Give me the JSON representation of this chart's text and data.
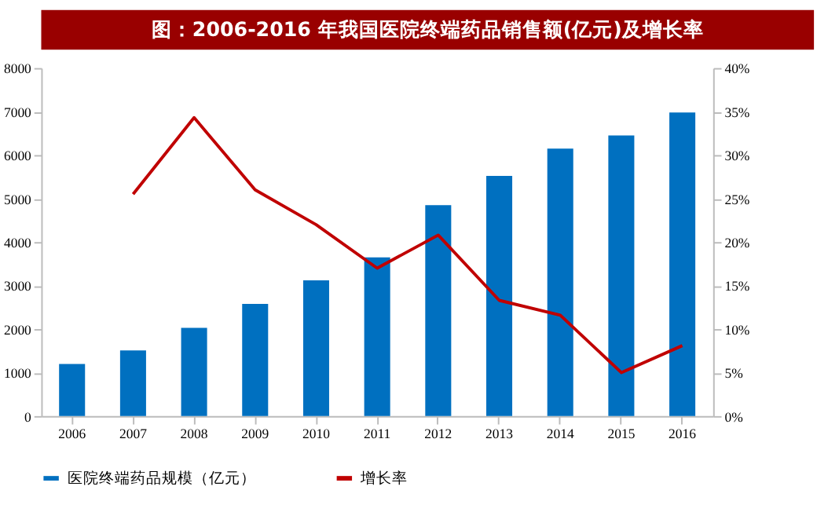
{
  "chart_data": {
    "type": "bar",
    "title": "图：2006-2016 年我国医院终端药品销售额(亿元)及增长率",
    "categories": [
      "2006",
      "2007",
      "2008",
      "2009",
      "2010",
      "2011",
      "2012",
      "2013",
      "2014",
      "2015",
      "2016"
    ],
    "series": [
      {
        "name": "医院终端药品规模（亿元）",
        "color": "#0070c0",
        "values": [
          1200,
          1510,
          2030,
          2580,
          3120,
          3650,
          4850,
          5520,
          6150,
          6450,
          6980
        ]
      },
      {
        "name": "增长率",
        "type": "line",
        "axis": "y2",
        "color": "#c00000",
        "values": [
          null,
          25.5,
          34.3,
          26.0,
          22.0,
          17.0,
          20.8,
          13.3,
          11.6,
          5.0,
          8.1
        ]
      }
    ],
    "ylim": [
      0,
      8000
    ],
    "yticks": [
      0,
      1000,
      2000,
      3000,
      4000,
      5000,
      6000,
      7000,
      8000
    ],
    "y2lim": [
      0,
      40
    ],
    "y2ticks": [
      {
        "value": 0,
        "label": "0%"
      },
      {
        "value": 5,
        "label": "5%"
      },
      {
        "value": 10,
        "label": "10%"
      },
      {
        "value": 15,
        "label": "15%"
      },
      {
        "value": 20,
        "label": "20%"
      },
      {
        "value": 25,
        "label": "25%"
      },
      {
        "value": 30,
        "label": "30%"
      },
      {
        "value": 35,
        "label": "35%"
      },
      {
        "value": 40,
        "label": "40%"
      }
    ],
    "grid": false,
    "legend": "bottom",
    "marker": "none",
    "line_style": "solid"
  }
}
